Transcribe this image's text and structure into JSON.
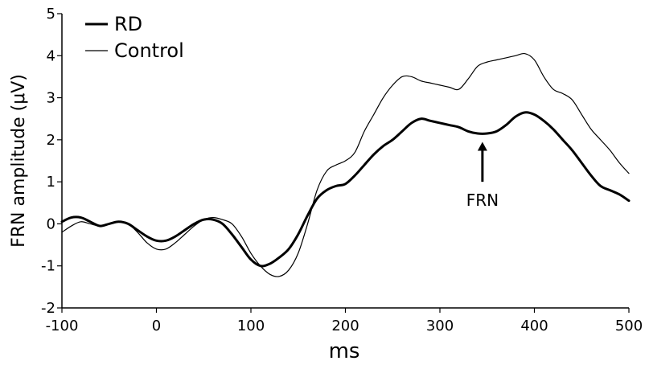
{
  "chart_data": {
    "type": "line",
    "xlabel": "ms",
    "ylabel": "FRN amplitude (μV)",
    "xlim": [
      -100,
      500
    ],
    "ylim": [
      -2,
      5
    ],
    "xticks": [
      -100,
      0,
      100,
      200,
      300,
      400,
      500
    ],
    "yticks": [
      -2,
      -1,
      0,
      1,
      2,
      3,
      4,
      5
    ],
    "grid": false,
    "legend_position": "top-left",
    "series": [
      {
        "name": "RD",
        "line": "thick",
        "color": "#000000",
        "points": [
          [
            -100,
            0.05
          ],
          [
            -90,
            0.15
          ],
          [
            -80,
            0.15
          ],
          [
            -70,
            0.05
          ],
          [
            -60,
            -0.05
          ],
          [
            -50,
            0.0
          ],
          [
            -40,
            0.05
          ],
          [
            -30,
            0.0
          ],
          [
            -20,
            -0.15
          ],
          [
            -10,
            -0.3
          ],
          [
            0,
            -0.4
          ],
          [
            10,
            -0.4
          ],
          [
            20,
            -0.3
          ],
          [
            30,
            -0.15
          ],
          [
            40,
            0.0
          ],
          [
            50,
            0.1
          ],
          [
            60,
            0.1
          ],
          [
            70,
            0.0
          ],
          [
            80,
            -0.25
          ],
          [
            90,
            -0.55
          ],
          [
            100,
            -0.85
          ],
          [
            110,
            -1.0
          ],
          [
            120,
            -0.95
          ],
          [
            130,
            -0.8
          ],
          [
            140,
            -0.6
          ],
          [
            150,
            -0.25
          ],
          [
            160,
            0.2
          ],
          [
            170,
            0.6
          ],
          [
            180,
            0.8
          ],
          [
            190,
            0.9
          ],
          [
            200,
            0.95
          ],
          [
            210,
            1.15
          ],
          [
            220,
            1.4
          ],
          [
            230,
            1.65
          ],
          [
            240,
            1.85
          ],
          [
            250,
            2.0
          ],
          [
            260,
            2.2
          ],
          [
            270,
            2.4
          ],
          [
            280,
            2.5
          ],
          [
            290,
            2.45
          ],
          [
            300,
            2.4
          ],
          [
            310,
            2.35
          ],
          [
            320,
            2.3
          ],
          [
            330,
            2.2
          ],
          [
            340,
            2.15
          ],
          [
            350,
            2.15
          ],
          [
            360,
            2.2
          ],
          [
            370,
            2.35
          ],
          [
            380,
            2.55
          ],
          [
            390,
            2.65
          ],
          [
            400,
            2.6
          ],
          [
            410,
            2.45
          ],
          [
            420,
            2.25
          ],
          [
            430,
            2.0
          ],
          [
            440,
            1.75
          ],
          [
            450,
            1.45
          ],
          [
            460,
            1.15
          ],
          [
            470,
            0.9
          ],
          [
            480,
            0.8
          ],
          [
            490,
            0.7
          ],
          [
            500,
            0.55
          ]
        ]
      },
      {
        "name": "Control",
        "line": "thin",
        "color": "#000000",
        "points": [
          [
            -100,
            -0.2
          ],
          [
            -90,
            -0.05
          ],
          [
            -80,
            0.05
          ],
          [
            -70,
            0.0
          ],
          [
            -60,
            -0.05
          ],
          [
            -50,
            0.0
          ],
          [
            -40,
            0.05
          ],
          [
            -30,
            0.0
          ],
          [
            -20,
            -0.2
          ],
          [
            -10,
            -0.45
          ],
          [
            0,
            -0.6
          ],
          [
            10,
            -0.6
          ],
          [
            20,
            -0.45
          ],
          [
            30,
            -0.25
          ],
          [
            40,
            -0.05
          ],
          [
            50,
            0.1
          ],
          [
            60,
            0.15
          ],
          [
            70,
            0.1
          ],
          [
            80,
            0.0
          ],
          [
            90,
            -0.3
          ],
          [
            100,
            -0.7
          ],
          [
            110,
            -1.0
          ],
          [
            120,
            -1.2
          ],
          [
            130,
            -1.25
          ],
          [
            140,
            -1.1
          ],
          [
            150,
            -0.7
          ],
          [
            160,
            0.0
          ],
          [
            170,
            0.8
          ],
          [
            180,
            1.25
          ],
          [
            190,
            1.4
          ],
          [
            200,
            1.5
          ],
          [
            210,
            1.7
          ],
          [
            220,
            2.2
          ],
          [
            230,
            2.6
          ],
          [
            240,
            3.0
          ],
          [
            250,
            3.3
          ],
          [
            260,
            3.5
          ],
          [
            270,
            3.5
          ],
          [
            280,
            3.4
          ],
          [
            290,
            3.35
          ],
          [
            300,
            3.3
          ],
          [
            310,
            3.25
          ],
          [
            320,
            3.2
          ],
          [
            330,
            3.45
          ],
          [
            340,
            3.75
          ],
          [
            350,
            3.85
          ],
          [
            360,
            3.9
          ],
          [
            370,
            3.95
          ],
          [
            380,
            4.0
          ],
          [
            390,
            4.05
          ],
          [
            400,
            3.9
          ],
          [
            410,
            3.5
          ],
          [
            420,
            3.2
          ],
          [
            430,
            3.1
          ],
          [
            440,
            2.95
          ],
          [
            450,
            2.6
          ],
          [
            460,
            2.25
          ],
          [
            470,
            2.0
          ],
          [
            480,
            1.75
          ],
          [
            490,
            1.45
          ],
          [
            500,
            1.2
          ]
        ]
      }
    ],
    "annotations": [
      {
        "text": "FRN",
        "arrow_x": 345,
        "arrow_y_from": 1.0,
        "arrow_y_to": 1.95
      }
    ]
  }
}
